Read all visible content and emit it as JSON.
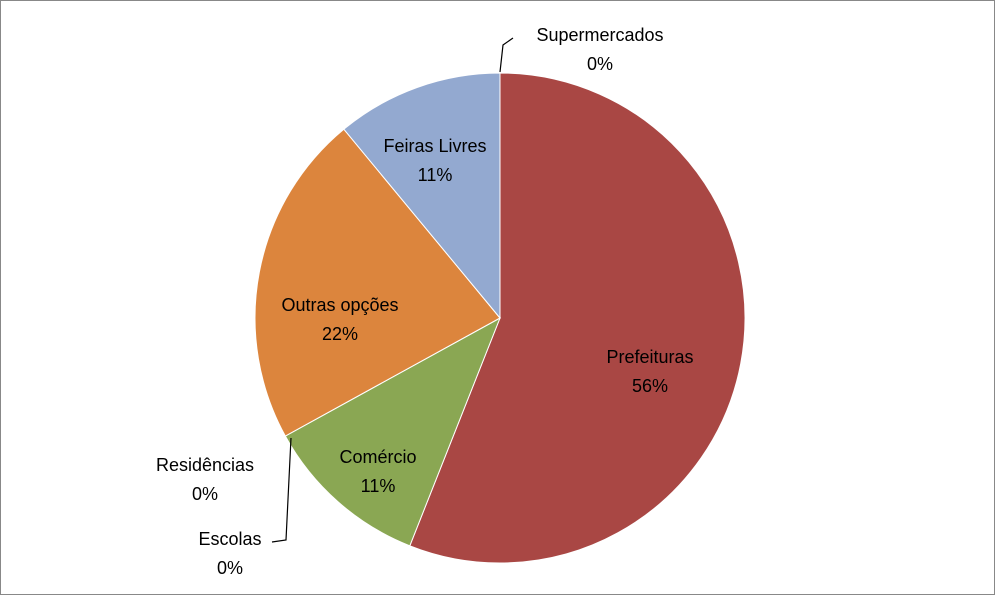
{
  "chart_data": {
    "type": "pie",
    "categories": [
      "Supermercados",
      "Prefeituras",
      "Comércio",
      "Escolas",
      "Residências",
      "Outras opções",
      "Feiras Livres"
    ],
    "values": [
      0,
      56,
      11,
      0,
      0,
      22,
      11
    ],
    "value_labels": [
      "0%",
      "56%",
      "11%",
      "0%",
      "0%",
      "22%",
      "11%"
    ],
    "colors": [
      "#4f81bd",
      "#a94744",
      "#8aa753",
      "#8064a2",
      "#4bacc6",
      "#dc853d",
      "#93a9d0"
    ]
  }
}
